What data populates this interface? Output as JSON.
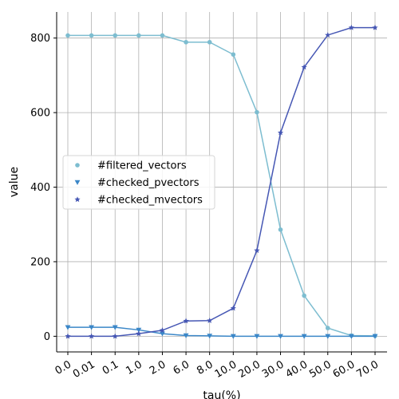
{
  "chart_data": {
    "type": "line",
    "title": "",
    "xlabel": "tau(%)",
    "ylabel": "value",
    "categories": [
      "0.0",
      "0.01",
      "0.1",
      "1.0",
      "2.0",
      "6.0",
      "8.0",
      "10.0",
      "20.0",
      "30.0",
      "40.0",
      "50.0",
      "60.0",
      "70.0"
    ],
    "yticks": [
      0,
      200,
      400,
      600,
      800
    ],
    "ylim": [
      -42,
      870
    ],
    "grid": true,
    "legend_position": "center-left",
    "series": [
      {
        "name": "#filtered_vectors",
        "color": "#7dbdd0",
        "marker": "circle",
        "values": [
          807,
          807,
          807,
          807,
          807,
          789,
          789,
          756,
          601,
          286,
          109,
          22,
          2,
          1
        ]
      },
      {
        "name": "#checked_pvectors",
        "color": "#3b87c8",
        "marker": "triangle-down",
        "values": [
          24,
          24,
          24,
          17,
          7,
          2,
          1,
          0,
          0,
          0,
          0,
          0,
          0,
          0
        ]
      },
      {
        "name": "#checked_mvectors",
        "color": "#4657b4",
        "marker": "star",
        "values": [
          0,
          0,
          0,
          7,
          16,
          41,
          42,
          75,
          230,
          546,
          722,
          808,
          828,
          828
        ]
      }
    ]
  }
}
